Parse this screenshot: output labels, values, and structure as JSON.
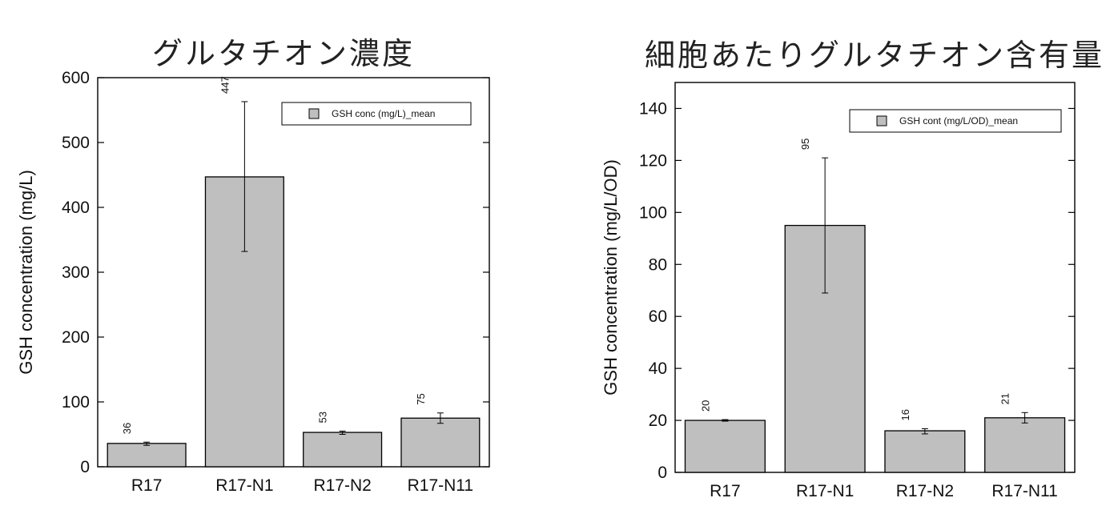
{
  "chart_data": [
    {
      "type": "bar",
      "title": "グルタチオン濃度",
      "ylabel": "GSH concentration (mg/L)",
      "xlabel": "",
      "categories": [
        "R17",
        "R17-N1",
        "R17-N2",
        "R17-N11"
      ],
      "series": [
        {
          "name": "GSH conc (mg/L)_mean",
          "values": [
            36,
            447,
            53,
            75
          ],
          "error_low": [
            33,
            332,
            50,
            67
          ],
          "error_high": [
            38,
            563,
            55,
            83
          ],
          "data_labels": [
            "36",
            "447",
            "53",
            "75"
          ]
        }
      ],
      "ylim": [
        0,
        600
      ],
      "yticks": [
        0,
        100,
        200,
        300,
        400,
        500,
        600
      ],
      "grid": false,
      "legend_position": "top-right",
      "colors": {
        "bar_fill": "#bfbfbf",
        "bar_edge": "#000000"
      }
    },
    {
      "type": "bar",
      "title": "細胞あたりグルタチオン含有量",
      "ylabel": "GSH concentration (mg/L/OD)",
      "xlabel": "",
      "categories": [
        "R17",
        "R17-N1",
        "R17-N2",
        "R17-N11"
      ],
      "series": [
        {
          "name": "GSH cont (mg/L/OD)_mean",
          "values": [
            20,
            95,
            16,
            21
          ],
          "error_low": [
            19.7,
            69,
            14.8,
            19
          ],
          "error_high": [
            20.3,
            121,
            16.8,
            23
          ],
          "data_labels": [
            "20",
            "95",
            "16",
            "21"
          ]
        }
      ],
      "ylim": [
        0,
        150
      ],
      "yticks": [
        0,
        20,
        40,
        60,
        80,
        100,
        120,
        140
      ],
      "grid": false,
      "legend_position": "top-right",
      "colors": {
        "bar_fill": "#bfbfbf",
        "bar_edge": "#000000"
      }
    }
  ]
}
